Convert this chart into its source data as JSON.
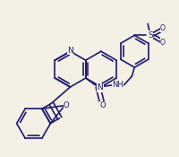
{
  "bg_color": "#f5f0e6",
  "line_color": "#1a1a6e",
  "lw": 1.2,
  "fs": 6.0,
  "atoms": {
    "N_left": "N",
    "N_right": "N",
    "O_furan": "O",
    "O_carbonyl": "O",
    "NH": "NH",
    "S": "S",
    "O_s1": "O",
    "O_s2": "O"
  }
}
